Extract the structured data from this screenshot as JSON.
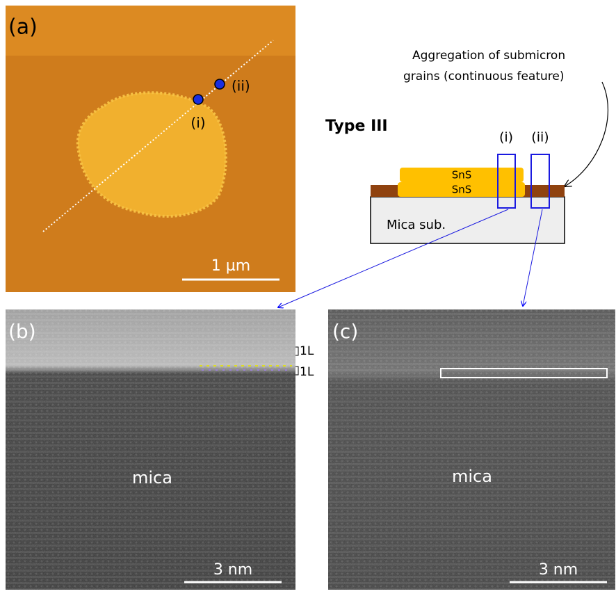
{
  "panel_a": {
    "label": "(a)",
    "point_labels": [
      "(i)",
      "(ii)"
    ],
    "scale_bar": "1 µm"
  },
  "schematic": {
    "annotation": [
      "Aggregation of submicron",
      "grains (continuous feature)"
    ],
    "title": "Type III",
    "box_labels": [
      "(i)",
      "(ii)"
    ],
    "layers": [
      "SnS",
      "SnS"
    ],
    "substrate": "Mica sub."
  },
  "panel_b": {
    "label": "(b)",
    "layer_labels": [
      "1L",
      "1L"
    ],
    "material": "mica",
    "scale_bar": "3 nm"
  },
  "panel_c": {
    "label": "(c)",
    "material": "mica",
    "scale_bar": "3 nm"
  }
}
